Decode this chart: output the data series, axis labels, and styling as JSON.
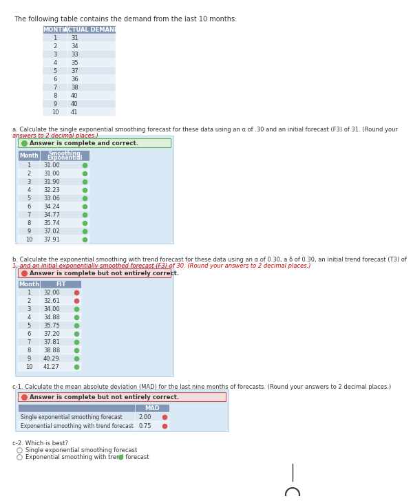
{
  "title": "The following table contains the demand from the last 10 months:",
  "table1_headers": [
    "MONTH",
    "ACTUAL DEMAND"
  ],
  "table1_data": [
    [
      "1",
      "31"
    ],
    [
      "2",
      "34"
    ],
    [
      "3",
      "33"
    ],
    [
      "4",
      "35"
    ],
    [
      "5",
      "37"
    ],
    [
      "6",
      "36"
    ],
    [
      "7",
      "38"
    ],
    [
      "8",
      "40"
    ],
    [
      "9",
      "40"
    ],
    [
      "10",
      "41"
    ]
  ],
  "section_a_line1": "a. Calculate the single exponential smoothing forecast for these data using an α of .30 and an initial forecast (F3) of 31. (Round your",
  "section_a_line2": "answers to 2 decimal places.)",
  "section_a_badge": "Answer is complete and correct.",
  "table2_headers": [
    "Month",
    "Exponential\nSmoothing"
  ],
  "table2_data": [
    [
      "1",
      "31.00"
    ],
    [
      "2",
      "31.00"
    ],
    [
      "3",
      "31.90"
    ],
    [
      "4",
      "32.23"
    ],
    [
      "5",
      "33.06"
    ],
    [
      "6",
      "34.24"
    ],
    [
      "7",
      "34.77"
    ],
    [
      "8",
      "35.74"
    ],
    [
      "9",
      "37.02"
    ],
    [
      "10",
      "37.91"
    ]
  ],
  "table2_correct": [
    true,
    true,
    true,
    true,
    true,
    true,
    true,
    true,
    true,
    true
  ],
  "section_b_line1": "b. Calculate the exponential smoothing with trend forecast for these data using an α of 0.30, a δ of 0.30, an initial trend forecast (T3) of",
  "section_b_line2": "1, and an initial exponentially smoothed forecast (F3) of 30. (Round your answers to 2 decimal places.)",
  "section_b_badge": "Answer is complete but not entirely correct.",
  "table3_headers": [
    "Month",
    "FIT"
  ],
  "table3_data": [
    [
      "1",
      "32.00"
    ],
    [
      "2",
      "32.61"
    ],
    [
      "3",
      "34.00"
    ],
    [
      "4",
      "34.88"
    ],
    [
      "5",
      "35.75"
    ],
    [
      "6",
      "37.20"
    ],
    [
      "7",
      "37.81"
    ],
    [
      "8",
      "38.88"
    ],
    [
      "9",
      "40.29"
    ],
    [
      "10",
      "41.27"
    ]
  ],
  "table3_correct": [
    false,
    false,
    true,
    true,
    true,
    true,
    true,
    true,
    true,
    true
  ],
  "section_c1_line1": "c-1. Calculate the mean absolute deviation (MAD) for the last nine months of forecasts. (Round your answers to 2 decimal places.)",
  "section_c1_badge": "Answer is complete but not entirely correct.",
  "table4_col1_header": "",
  "table4_col2_header": "MAD",
  "table4_data": [
    [
      "Single exponential smoothing forecast",
      "2.00",
      false
    ],
    [
      "Exponential smoothing with trend forecast",
      "0.75",
      false
    ]
  ],
  "section_c2_text": "c-2. Which is best?",
  "radio1_text": "Single exponential smoothing forecast",
  "radio2_text": "Exponential smoothing with trend forecast",
  "color_header_bg": "#8096b4",
  "color_row_odd": "#dce6f1",
  "color_row_even": "#eaf0f8",
  "color_badge_green_bg": "#dff0d8",
  "color_badge_green_border": "#5cb85c",
  "color_badge_red_bg": "#f2dede",
  "color_badge_red_border": "#d9534f",
  "color_icon_green": "#5cb85c",
  "color_icon_red": "#d9534f",
  "color_text": "#333333",
  "color_text_red": "#cc0000",
  "color_section_box_bg": "#d9e8f5",
  "color_section_box_border": "#b0c8e0"
}
